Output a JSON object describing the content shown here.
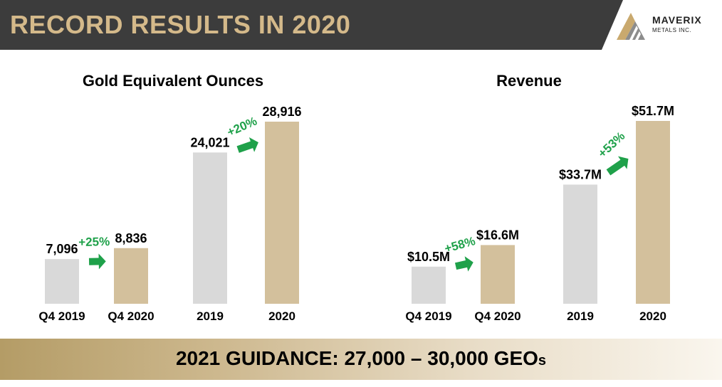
{
  "header": {
    "title": "RECORD RESULTS IN 2020"
  },
  "logo": {
    "name": "MAVERIX",
    "sub": "METALS INC."
  },
  "colors": {
    "prior": "#d9d9d9",
    "current": "#d3c09c",
    "arrow": "#1fa14a",
    "gold": "#d4b98a"
  },
  "chart_data": [
    {
      "type": "bar",
      "title": "Gold Equivalent Ounces",
      "categories": [
        "Q4 2019",
        "Q4 2020",
        "2019",
        "2020"
      ],
      "values": [
        7096,
        8836,
        24021,
        28916
      ],
      "value_labels": [
        "7,096",
        "8,836",
        "24,021",
        "28,916"
      ],
      "annotations": [
        {
          "from": 0,
          "to": 1,
          "label": "+25%"
        },
        {
          "from": 2,
          "to": 3,
          "label": "+20%"
        }
      ],
      "xlabel": "",
      "ylabel": "",
      "ylim": [
        0,
        28916
      ]
    },
    {
      "type": "bar",
      "title": "Revenue",
      "categories": [
        "Q4 2019",
        "Q4 2020",
        "2019",
        "2020"
      ],
      "values": [
        10.5,
        16.6,
        33.7,
        51.7
      ],
      "value_labels": [
        "$10.5M",
        "$16.6M",
        "$33.7M",
        "$51.7M"
      ],
      "annotations": [
        {
          "from": 0,
          "to": 1,
          "label": "+58%"
        },
        {
          "from": 2,
          "to": 3,
          "label": "+53%"
        }
      ],
      "xlabel": "",
      "ylabel": "",
      "ylim": [
        0,
        51.7
      ]
    }
  ],
  "footer": {
    "guidance": "2021 GUIDANCE:  27,000 – 30,000 GEO",
    "guidance_suffix": "s"
  }
}
